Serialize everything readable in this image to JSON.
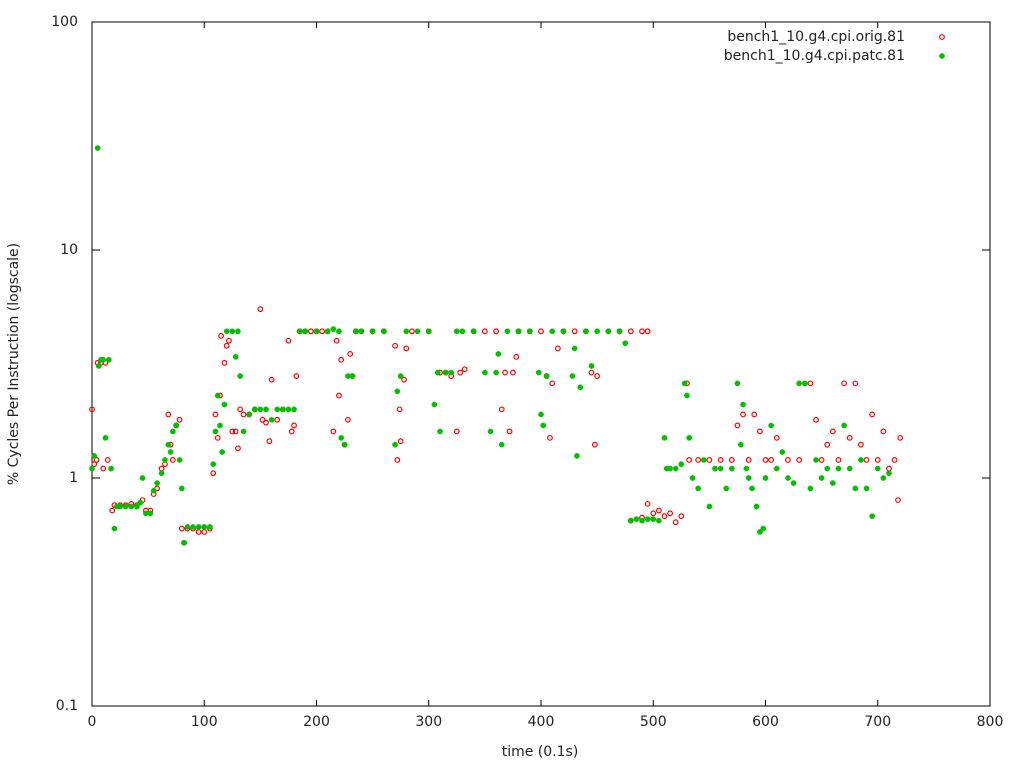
{
  "chart_data": {
    "type": "scatter",
    "xlabel": "time (0.1s)",
    "ylabel": "% Cycles Per Instruction (logscale)",
    "xlim": [
      0,
      800
    ],
    "xticks": [
      0,
      100,
      200,
      300,
      400,
      500,
      600,
      700,
      800
    ],
    "ylim": [
      0.1,
      100
    ],
    "yticks": [
      0.1,
      1,
      10,
      100
    ],
    "log_y": true,
    "grid": false,
    "legend": "top-right",
    "series": [
      {
        "name": "bench1_10.g4.cpi.orig.81",
        "color": "#ff0000",
        "marker": "open-circle",
        "x": [
          0,
          2,
          4,
          5,
          8,
          10,
          12,
          14,
          18,
          20,
          25,
          30,
          35,
          40,
          45,
          48,
          52,
          55,
          58,
          62,
          65,
          68,
          70,
          72,
          75,
          78,
          80,
          82,
          85,
          90,
          95,
          100,
          105,
          108,
          110,
          112,
          114,
          115,
          118,
          120,
          122,
          125,
          128,
          130,
          132,
          135,
          140,
          145,
          150,
          152,
          155,
          158,
          160,
          165,
          170,
          175,
          178,
          180,
          182,
          185,
          190,
          195,
          200,
          205,
          210,
          215,
          218,
          220,
          222,
          225,
          228,
          230,
          232,
          235,
          240,
          250,
          260,
          270,
          272,
          274,
          275,
          278,
          280,
          285,
          300,
          310,
          315,
          320,
          325,
          328,
          332,
          340,
          350,
          360,
          365,
          368,
          372,
          375,
          378,
          380,
          390,
          400,
          405,
          408,
          410,
          415,
          420,
          430,
          440,
          445,
          448,
          450,
          460,
          470,
          480,
          490,
          495,
          480,
          490,
          495,
          500,
          505,
          510,
          515,
          520,
          525,
          530,
          532,
          540,
          550,
          560,
          570,
          575,
          580,
          585,
          590,
          595,
          600,
          605,
          610,
          620,
          630,
          640,
          645,
          650,
          655,
          660,
          665,
          670,
          675,
          680,
          685,
          690,
          695,
          700,
          705,
          710,
          715,
          718,
          720
        ],
        "values": [
          2.0,
          1.15,
          1.2,
          3.2,
          3.2,
          1.1,
          3.2,
          1.2,
          0.72,
          0.76,
          0.76,
          0.76,
          0.77,
          0.76,
          0.8,
          0.72,
          0.72,
          0.85,
          0.9,
          1.1,
          1.15,
          1.9,
          1.4,
          1.2,
          1.7,
          1.8,
          0.6,
          0.52,
          0.6,
          0.6,
          0.58,
          0.58,
          0.6,
          1.05,
          1.9,
          1.5,
          2.3,
          4.2,
          3.2,
          3.8,
          4.0,
          1.6,
          1.6,
          1.35,
          2.0,
          1.9,
          1.9,
          2.0,
          5.5,
          1.8,
          1.75,
          1.45,
          2.7,
          1.8,
          2.0,
          4.0,
          1.6,
          1.7,
          2.8,
          4.4,
          4.4,
          4.4,
          4.4,
          4.4,
          4.4,
          1.6,
          4.0,
          2.3,
          3.3,
          1.4,
          1.8,
          3.5,
          2.8,
          4.4,
          4.4,
          4.4,
          4.4,
          3.8,
          1.2,
          2.0,
          1.45,
          2.7,
          3.7,
          4.4,
          4.4,
          2.9,
          2.9,
          2.8,
          1.6,
          2.9,
          3.0,
          4.4,
          4.4,
          4.4,
          2.0,
          2.9,
          1.6,
          2.9,
          3.4,
          4.4,
          4.4,
          4.4,
          2.8,
          1.5,
          2.6,
          3.7,
          4.4,
          4.4,
          4.4,
          2.9,
          1.4,
          2.8,
          4.4,
          4.4,
          4.4,
          4.4,
          4.4,
          0.65,
          0.67,
          0.77,
          0.7,
          0.72,
          0.68,
          0.7,
          0.64,
          0.68,
          2.6,
          1.2,
          1.2,
          1.2,
          1.2,
          1.2,
          1.7,
          1.9,
          1.2,
          1.9,
          1.6,
          1.2,
          1.2,
          1.5,
          1.2,
          1.2,
          2.6,
          1.8,
          1.2,
          1.4,
          1.6,
          1.2,
          2.6,
          1.5,
          2.6,
          1.4,
          1.2,
          1.9,
          1.2,
          1.6,
          1.1,
          1.2,
          0.8,
          1.5
        ]
      },
      {
        "name": "bench1_10.g4.cpi.patc.81",
        "color": "#00c000",
        "marker": "filled-circle",
        "x": [
          0,
          2,
          5,
          6,
          8,
          10,
          12,
          15,
          17,
          20,
          22,
          25,
          30,
          35,
          40,
          43,
          45,
          48,
          52,
          55,
          58,
          62,
          65,
          68,
          70,
          72,
          75,
          78,
          80,
          82,
          85,
          90,
          95,
          100,
          105,
          108,
          110,
          112,
          114,
          116,
          118,
          120,
          125,
          130,
          128,
          132,
          135,
          140,
          145,
          150,
          155,
          160,
          165,
          170,
          175,
          180,
          185,
          190,
          200,
          210,
          215,
          220,
          222,
          225,
          228,
          232,
          235,
          240,
          250,
          260,
          270,
          272,
          275,
          280,
          290,
          300,
          305,
          308,
          310,
          315,
          320,
          325,
          330,
          340,
          350,
          355,
          360,
          362,
          365,
          370,
          380,
          390,
          398,
          400,
          402,
          405,
          410,
          420,
          428,
          430,
          432,
          435,
          440,
          445,
          450,
          460,
          470,
          475,
          480,
          485,
          490,
          495,
          500,
          505,
          510,
          512,
          515,
          520,
          525,
          528,
          530,
          532,
          535,
          540,
          545,
          550,
          555,
          560,
          565,
          570,
          575,
          578,
          580,
          583,
          585,
          588,
          592,
          595,
          598,
          600,
          605,
          610,
          615,
          620,
          625,
          630,
          635,
          640,
          645,
          650,
          655,
          660,
          665,
          670,
          675,
          680,
          685,
          690,
          695,
          700,
          705,
          710
        ],
        "values": [
          1.1,
          1.25,
          28,
          3.1,
          3.3,
          3.3,
          1.5,
          3.3,
          1.1,
          0.6,
          0.75,
          0.75,
          0.75,
          0.75,
          0.75,
          0.78,
          1.0,
          0.7,
          0.7,
          0.88,
          0.95,
          1.05,
          1.2,
          1.4,
          1.3,
          1.6,
          1.7,
          1.2,
          0.9,
          0.52,
          0.61,
          0.61,
          0.61,
          0.61,
          0.61,
          1.15,
          1.6,
          2.3,
          1.7,
          1.3,
          2.1,
          4.4,
          4.4,
          4.4,
          3.4,
          2.8,
          1.6,
          1.9,
          2.0,
          2.0,
          2.0,
          1.8,
          2.0,
          2.0,
          2.0,
          2.0,
          4.4,
          4.4,
          4.4,
          4.4,
          4.5,
          4.4,
          1.5,
          1.4,
          2.8,
          2.8,
          4.4,
          4.4,
          4.4,
          4.4,
          1.4,
          2.4,
          2.8,
          4.4,
          4.4,
          4.4,
          2.1,
          2.9,
          1.6,
          2.9,
          2.9,
          4.4,
          4.4,
          4.4,
          2.9,
          1.6,
          2.9,
          3.5,
          1.4,
          4.4,
          4.4,
          4.4,
          2.9,
          1.9,
          1.7,
          2.8,
          4.4,
          4.4,
          2.8,
          3.7,
          1.25,
          2.5,
          4.4,
          3.1,
          4.4,
          4.4,
          4.4,
          3.9,
          0.65,
          0.66,
          0.65,
          0.66,
          0.66,
          0.65,
          1.5,
          1.1,
          1.1,
          1.1,
          1.15,
          2.6,
          2.3,
          1.5,
          1.0,
          0.9,
          1.2,
          0.75,
          1.1,
          1.1,
          0.9,
          1.1,
          2.6,
          1.4,
          2.1,
          1.1,
          1.0,
          0.9,
          0.75,
          0.58,
          0.6,
          1.0,
          1.7,
          1.1,
          1.3,
          1.0,
          0.95,
          2.6,
          2.6,
          0.9,
          1.2,
          1.0,
          1.1,
          0.95,
          1.1,
          1.7,
          1.1,
          0.9,
          1.2,
          0.9,
          0.68,
          1.1,
          1.0,
          1.05
        ]
      }
    ]
  }
}
